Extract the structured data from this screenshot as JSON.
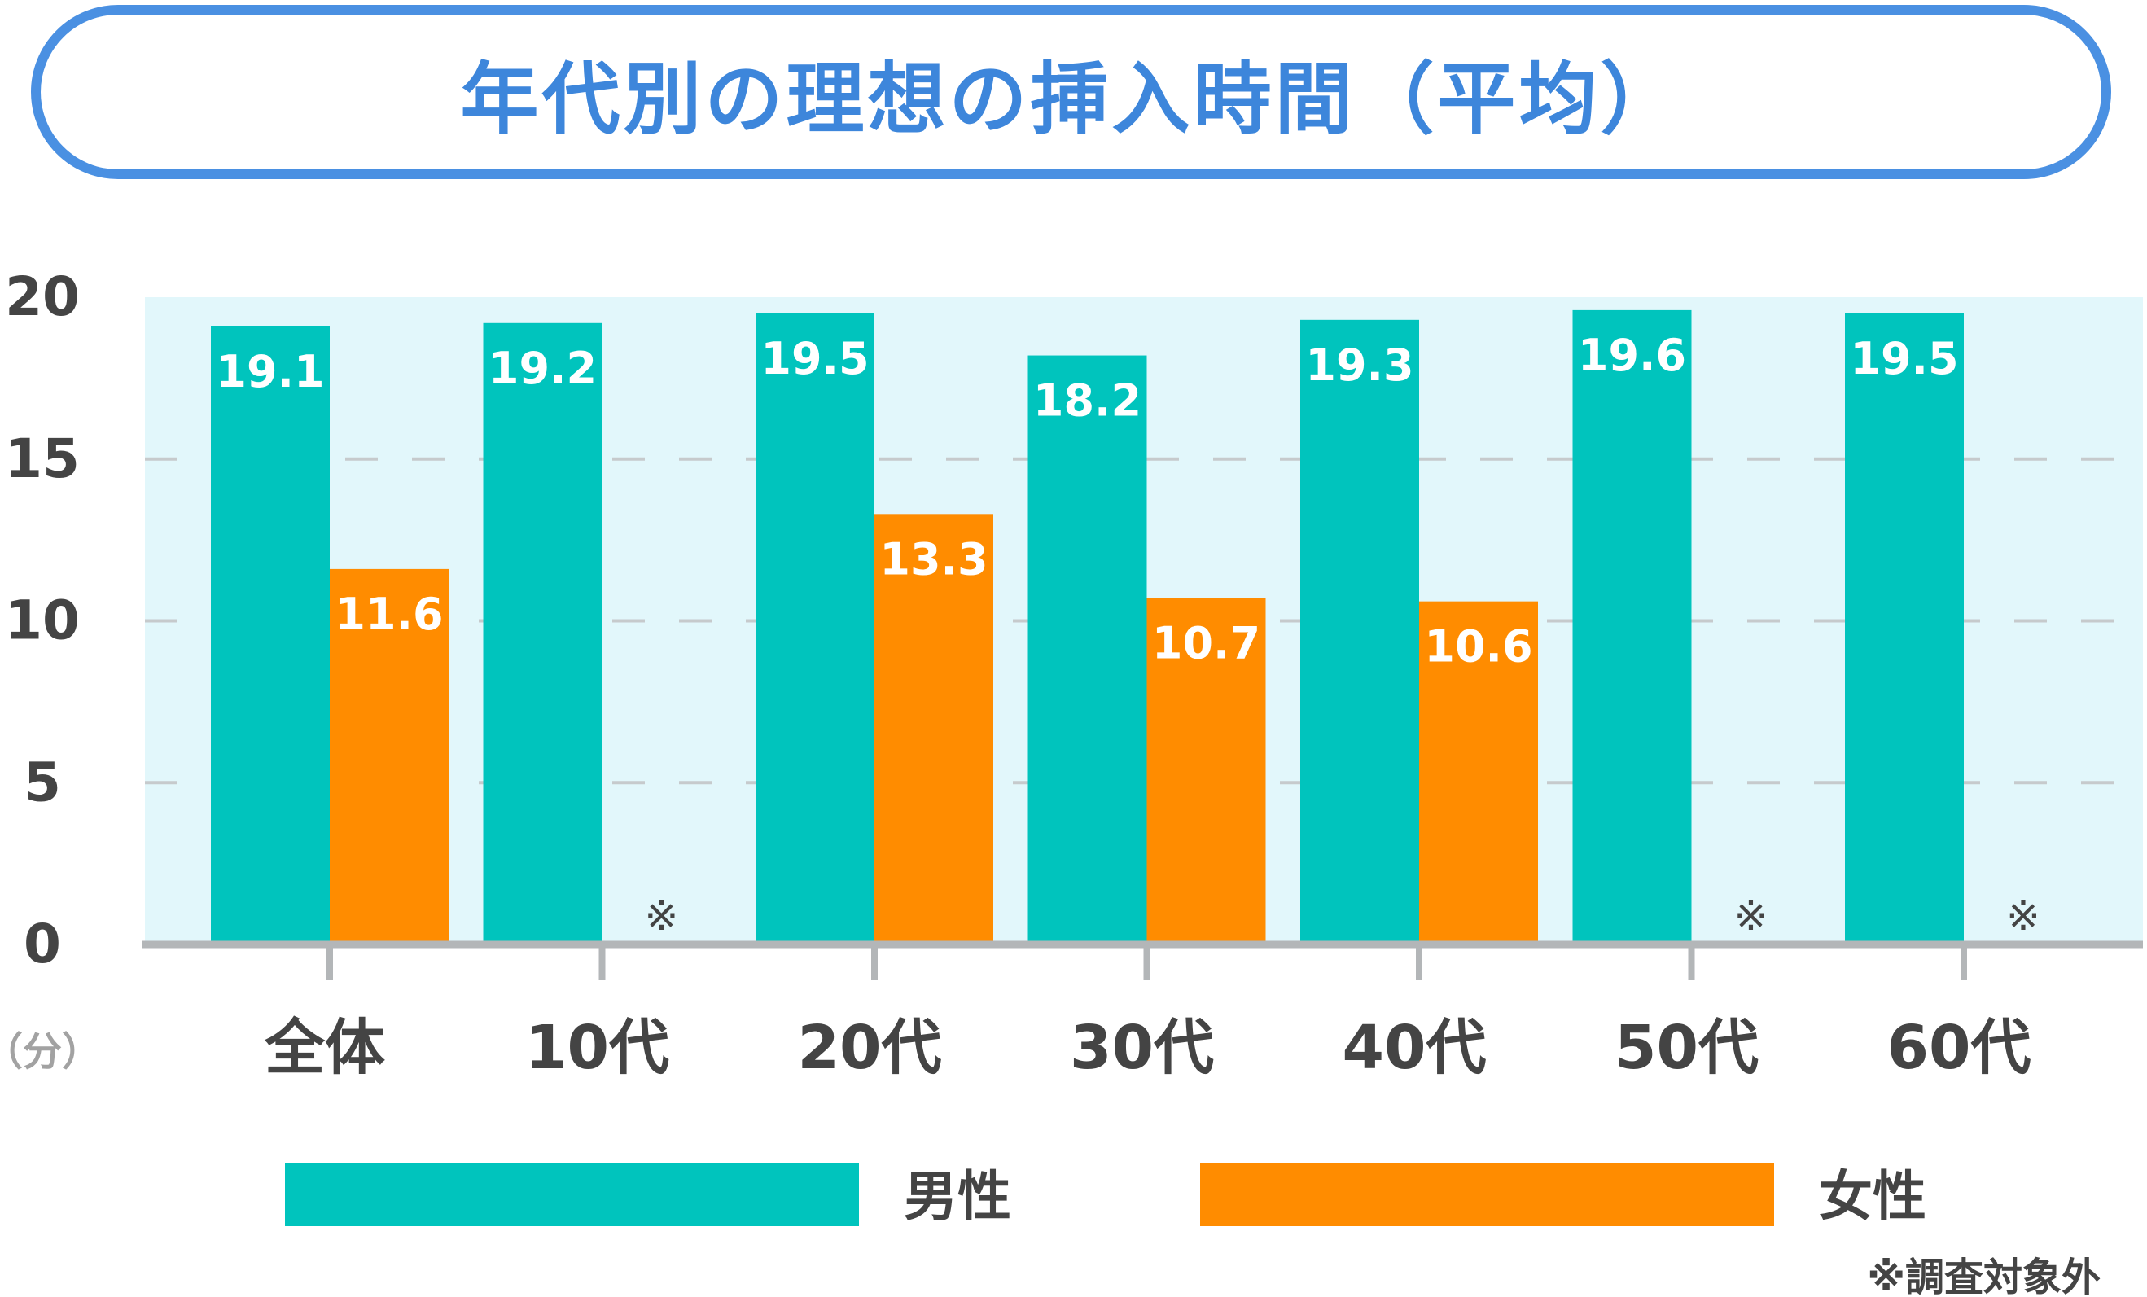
{
  "title": "年代別の理想の挿入時間（平均）",
  "unit_label": "（分）",
  "excluded_mark": "※",
  "footnote": "※調査対象外",
  "colors": {
    "title_blue": "#4a90e2",
    "male": "#00c4bd",
    "female": "#ff8c00",
    "plot_bg": "#e2f7fb",
    "grid": "#c6cacc",
    "axis": "#b3b6b8",
    "text": "#444444"
  },
  "chart_data": {
    "type": "bar",
    "categories": [
      "全体",
      "10代",
      "20代",
      "30代",
      "40代",
      "50代",
      "60代"
    ],
    "series": [
      {
        "name": "男性",
        "values": [
          19.1,
          19.2,
          19.5,
          18.2,
          19.3,
          19.6,
          19.5
        ]
      },
      {
        "name": "女性",
        "values": [
          11.6,
          null,
          13.3,
          10.7,
          10.6,
          null,
          null
        ]
      }
    ],
    "ylim": [
      0,
      20
    ],
    "yticks": [
      0,
      5,
      10,
      15,
      20
    ],
    "grid": true,
    "legend": "bottom"
  }
}
